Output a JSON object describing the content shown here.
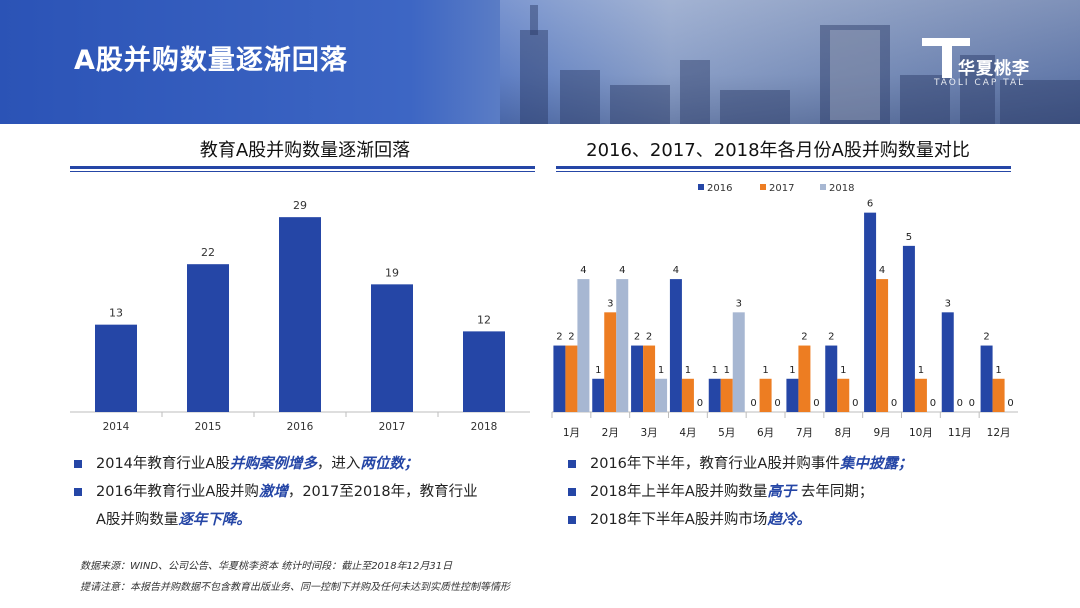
{
  "header": {
    "title": "A股并购数量逐渐回落",
    "logo_text": "华夏桃李",
    "logo_sub": "TAOLI CAP TAL"
  },
  "left_panel": {
    "title": "教育A股并购数量逐渐回落",
    "bullets": [
      {
        "parts": [
          {
            "t": "2014年教育行业A股"
          },
          {
            "t": "并购案例增多",
            "em": true
          },
          {
            "t": "，进入"
          },
          {
            "t": "两位数；",
            "em": true
          }
        ]
      },
      {
        "parts": [
          {
            "t": "2016年教育行业A股并购"
          },
          {
            "t": "激增",
            "em": true
          },
          {
            "t": "，2017至2018年，教育行业"
          }
        ]
      },
      {
        "parts": [
          {
            "t": "A股并购数量"
          },
          {
            "t": "逐年下降。",
            "em": true
          }
        ],
        "indent_only": true
      }
    ]
  },
  "right_panel": {
    "title": "2016、2017、2018年各月份A股并购数量对比",
    "bullets": [
      {
        "parts": [
          {
            "t": "2016年下半年，教育行业A股并购事件"
          },
          {
            "t": "集中披露；",
            "em": true
          }
        ]
      },
      {
        "parts": [
          {
            "t": "2018年上半年A股并购数量"
          },
          {
            "t": "高于",
            "em": true
          },
          {
            "t": " 去年同期；"
          }
        ]
      },
      {
        "parts": [
          {
            "t": "2018年下半年A股并购市场"
          },
          {
            "t": "趋冷。",
            "em": true
          }
        ]
      }
    ]
  },
  "footnotes": {
    "source": "数据来源：WIND、公司公告、华夏桃李资本     统计时间段：截止至2018年12月31日",
    "note": "提请注意：本报告并购数据不包含教育出版业务、同一控制下并购及任何未达到实质性控制等情形"
  },
  "colors": {
    "accent": "#2546a6",
    "bar_blue": "#2546a6",
    "bar_orange": "#ed7d22",
    "bar_gray": "#a7b7d2"
  },
  "chart_data": [
    {
      "type": "bar",
      "title": "教育A股并购数量逐渐回落",
      "categories": [
        "2014",
        "2015",
        "2016",
        "2017",
        "2018"
      ],
      "values": [
        13,
        22,
        29,
        19,
        12
      ],
      "ylim": [
        0,
        32
      ],
      "grid": false
    },
    {
      "type": "bar",
      "title": "2016、2017、2018年各月份A股并购数量对比",
      "categories": [
        "1月",
        "2月",
        "3月",
        "4月",
        "5月",
        "6月",
        "7月",
        "8月",
        "9月",
        "10月",
        "11月",
        "12月"
      ],
      "series": [
        {
          "name": "2016",
          "color": "#2546a6",
          "values": [
            2,
            1,
            2,
            4,
            1,
            0,
            1,
            2,
            6,
            5,
            3,
            2
          ]
        },
        {
          "name": "2017",
          "color": "#ed7d22",
          "values": [
            2,
            3,
            2,
            1,
            1,
            1,
            2,
            1,
            4,
            1,
            0,
            1
          ]
        },
        {
          "name": "2018",
          "color": "#a7b7d2",
          "values": [
            4,
            4,
            1,
            0,
            3,
            0,
            0,
            0,
            0,
            0,
            0,
            0
          ]
        }
      ],
      "ylim": [
        0,
        6.2
      ],
      "legend": "top",
      "grid": false
    }
  ]
}
